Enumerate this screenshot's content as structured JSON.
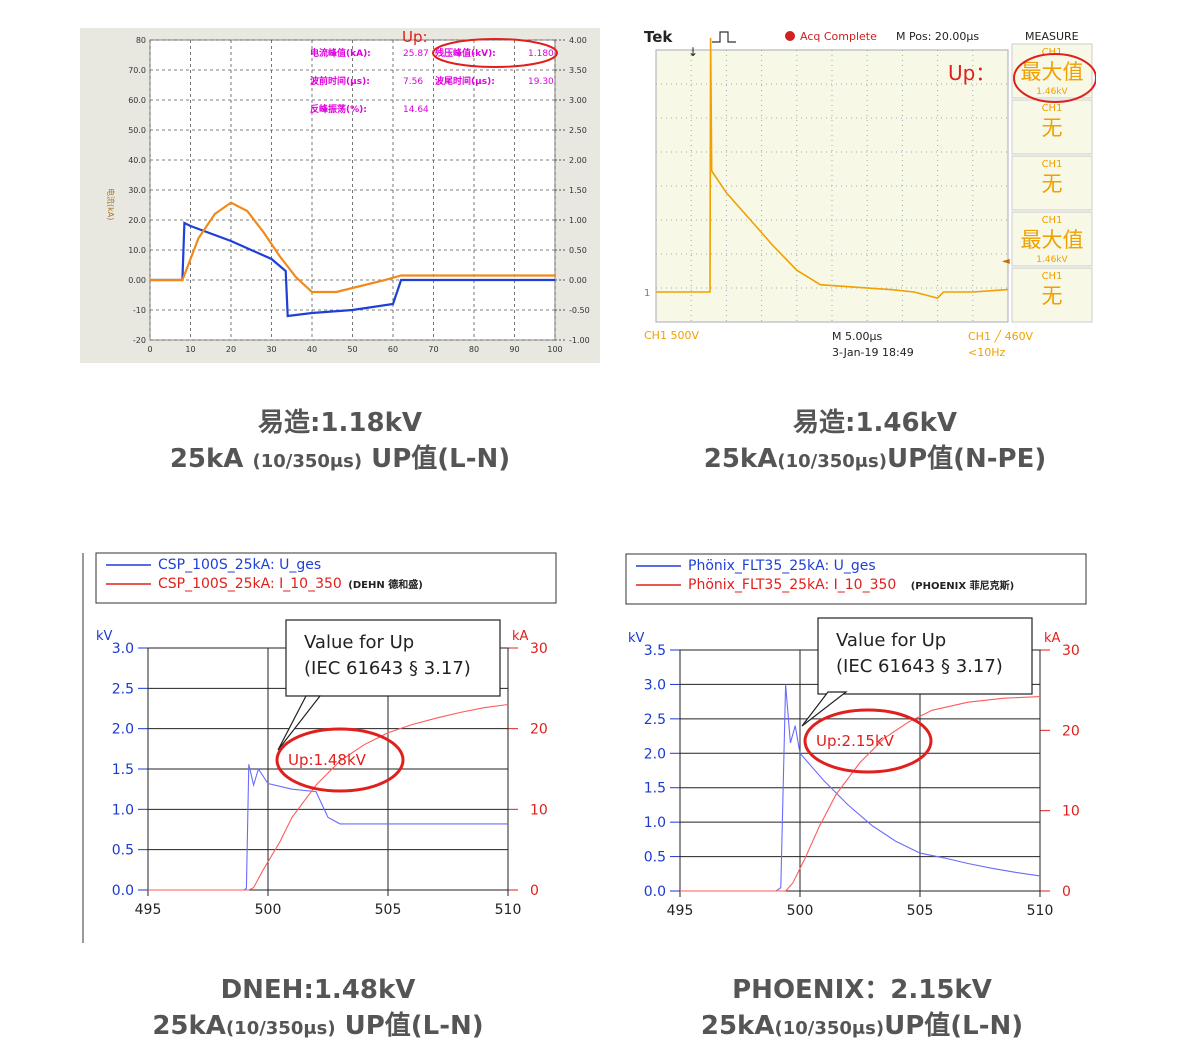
{
  "colors": {
    "blue": "#1f3fd6",
    "orange": "#f08a1c",
    "red": "#e0201c",
    "magenta": "#e000e0",
    "scope_bg": "#f7f9e6",
    "scope_yellow": "#f0a000"
  },
  "captions": [
    {
      "line1": "易造:1.18kV",
      "line2a": "25kA ",
      "line2b": "(10/350μs)",
      "line2c": " UP值(L-N)"
    },
    {
      "line1": "易造:1.46kV",
      "line2a": "25kA",
      "line2b": "(10/350μs)",
      "line2c": "UP值(N-PE)"
    },
    {
      "line1": "DNEH:1.48kV",
      "line2a": "25kA",
      "line2b": "(10/350μs)",
      "line2c": " UP值(L-N)"
    },
    {
      "line1": "PHOENIX：2.15kV",
      "line2a": "25kA",
      "line2b": "(10/350μs)",
      "line2c": "UP值(L-N)"
    }
  ],
  "chart_data": [
    {
      "type": "line",
      "panel": "top-left",
      "up_label": "Up:",
      "ylabel_left": "电流(kA)",
      "x": [
        0,
        10,
        20,
        30,
        40,
        50,
        60,
        70,
        80,
        90,
        100
      ],
      "xlim": [
        0,
        100
      ],
      "ylim_left": [
        -20,
        80
      ],
      "ylim_right": [
        -1.0,
        4.0
      ],
      "left_ticks": [
        "80",
        "70.0",
        "60.0",
        "50.0",
        "40.0",
        "30.0",
        "20.0",
        "10.0",
        "0.00",
        "-10",
        "-20"
      ],
      "right_ticks": [
        "4.00",
        "3.50",
        "3.00",
        "2.50",
        "2.00",
        "1.50",
        "1.00",
        "0.50",
        "0.00",
        "-0.50",
        "-1.00"
      ],
      "readouts": [
        {
          "label": "电流峰值(kA):",
          "value": "25.87"
        },
        {
          "label": "残压峰值(kV):",
          "value": "1.180"
        },
        {
          "label": "波前时间(μs):",
          "value": "7.56"
        },
        {
          "label": "波尾时间(μs):",
          "value": "19.30"
        },
        {
          "label": "反峰振荡(%):",
          "value": "14.64"
        }
      ],
      "series": [
        {
          "color": "blue",
          "points": [
            [
              0,
              0
            ],
            [
              8,
              0
            ],
            [
              8.5,
              19
            ],
            [
              10,
              18
            ],
            [
              20,
              13
            ],
            [
              30,
              7
            ],
            [
              33.5,
              3
            ],
            [
              34,
              -12
            ],
            [
              40,
              -11
            ],
            [
              50,
              -10
            ],
            [
              60,
              -8
            ],
            [
              62,
              0
            ],
            [
              100,
              0
            ]
          ]
        },
        {
          "color": "orange",
          "points": [
            [
              0,
              0
            ],
            [
              8,
              0
            ],
            [
              12,
              14
            ],
            [
              16,
              22
            ],
            [
              20,
              25.8
            ],
            [
              24,
              23
            ],
            [
              28,
              16
            ],
            [
              32,
              8
            ],
            [
              36,
              1
            ],
            [
              40,
              -4
            ],
            [
              46,
              -4
            ],
            [
              52,
              -2
            ],
            [
              58,
              0
            ],
            [
              62,
              1.5
            ],
            [
              100,
              1.5
            ]
          ]
        }
      ],
      "ellipse_value": "1.180"
    },
    {
      "type": "line",
      "panel": "top-right",
      "brand": "Tek",
      "status": "Acq Complete",
      "mpos": "M Pos: 20.00μs",
      "measure_title": "MEASURE",
      "up_label": "Up：",
      "measure": [
        {
          "ch": "CH1",
          "value": "最大值",
          "sub": "1.46kV"
        },
        {
          "ch": "CH1",
          "value": "无",
          "sub": ""
        },
        {
          "ch": "CH1",
          "value": "无",
          "sub": ""
        },
        {
          "ch": "CH1",
          "value": "最大值",
          "sub": "1.46kV"
        },
        {
          "ch": "CH1",
          "value": "无",
          "sub": ""
        }
      ],
      "ch_scale": "CH1  500V",
      "time_scale": "M 5.00μs",
      "date": "3-Jan-19 18:49",
      "trigger": "CH1 ╱ 460V",
      "freq": "<10Hz",
      "marker": "1",
      "series": [
        {
          "color": "scope_yellow",
          "points": [
            [
              0,
              0
            ],
            [
              9.2,
              0
            ],
            [
              9.3,
              2.1
            ],
            [
              9.5,
              1.0
            ],
            [
              12,
              0.82
            ],
            [
              16,
              0.6
            ],
            [
              20,
              0.38
            ],
            [
              24,
              0.18
            ],
            [
              28,
              0.06
            ],
            [
              34,
              0.04
            ],
            [
              40,
              0.02
            ],
            [
              44,
              0.0
            ],
            [
              48,
              -0.05
            ],
            [
              49,
              0.0
            ],
            [
              54,
              0.0
            ],
            [
              60,
              0.02
            ]
          ]
        }
      ]
    },
    {
      "type": "line",
      "panel": "bottom-left",
      "legend": [
        {
          "color": "blue",
          "name": "CSP_100S_25kA: U_ges"
        },
        {
          "color": "red",
          "name": "CSP_100S_25kA: I_10_350",
          "suffix": "(DEHN 德和盛)"
        }
      ],
      "left_unit": "kV",
      "right_unit": "kA",
      "x_ticks": [
        "495",
        "500",
        "505",
        "510"
      ],
      "xlim": [
        495,
        510
      ],
      "ylim_left": [
        0,
        3.0
      ],
      "left_ticks": [
        "3.0",
        "2.5",
        "2.0",
        "1.5",
        "1.0",
        "0.5",
        "0.0"
      ],
      "ylim_right": [
        0,
        30
      ],
      "right_ticks": [
        "30",
        "20",
        "10",
        "0"
      ],
      "callout": [
        "Value for Up",
        "(IEC 61643 § 3.17)"
      ],
      "up_label": "Up:1.48kV",
      "series": [
        {
          "color": "blue",
          "points": [
            [
              495,
              0
            ],
            [
              499,
              0
            ],
            [
              499.1,
              0.02
            ],
            [
              499.2,
              1.56
            ],
            [
              499.4,
              1.3
            ],
            [
              499.6,
              1.5
            ],
            [
              500,
              1.32
            ],
            [
              501,
              1.25
            ],
            [
              502,
              1.22
            ],
            [
              502.5,
              0.9
            ],
            [
              503,
              0.82
            ],
            [
              505,
              0.82
            ],
            [
              510,
              0.82
            ]
          ]
        },
        {
          "color": "red",
          "points": [
            [
              495,
              0
            ],
            [
              499.2,
              0
            ],
            [
              499.4,
              0.3
            ],
            [
              499.8,
              2.5
            ],
            [
              500.5,
              6
            ],
            [
              501,
              9
            ],
            [
              502,
              13
            ],
            [
              503,
              16
            ],
            [
              504,
              18
            ],
            [
              505,
              19.5
            ],
            [
              506,
              20.5
            ],
            [
              507,
              21.3
            ],
            [
              508,
              22
            ],
            [
              509,
              22.6
            ],
            [
              510,
              23
            ]
          ]
        }
      ]
    },
    {
      "type": "line",
      "panel": "bottom-right",
      "legend": [
        {
          "color": "blue",
          "name": "Phönix_FLT35_25kA: U_ges"
        },
        {
          "color": "red",
          "name": "Phönix_FLT35_25kA: I_10_350",
          "suffix": "(PHOENIX 菲尼克斯)"
        }
      ],
      "left_unit": "kV",
      "right_unit": "kA",
      "x_ticks": [
        "495",
        "500",
        "505",
        "510"
      ],
      "xlim": [
        495,
        510
      ],
      "ylim_left": [
        0,
        3.5
      ],
      "left_ticks": [
        "3.5",
        "3.0",
        "2.5",
        "2.0",
        "1.5",
        "1.0",
        "0.5",
        "0.0"
      ],
      "ylim_right": [
        0,
        30
      ],
      "right_ticks": [
        "30",
        "20",
        "10",
        "0"
      ],
      "callout": [
        "Value for Up",
        "(IEC 61643 § 3.17)"
      ],
      "up_label": "Up:2.15kV",
      "series": [
        {
          "color": "blue",
          "points": [
            [
              495,
              0
            ],
            [
              499,
              0
            ],
            [
              499.2,
              0.05
            ],
            [
              499.4,
              3.0
            ],
            [
              499.6,
              2.15
            ],
            [
              499.8,
              2.4
            ],
            [
              500,
              2.0
            ],
            [
              501,
              1.6
            ],
            [
              502,
              1.25
            ],
            [
              503,
              0.95
            ],
            [
              504,
              0.72
            ],
            [
              505,
              0.55
            ],
            [
              506,
              0.48
            ],
            [
              507,
              0.4
            ],
            [
              508,
              0.33
            ],
            [
              509,
              0.27
            ],
            [
              510,
              0.22
            ]
          ]
        },
        {
          "color": "red",
          "points": [
            [
              495,
              0
            ],
            [
              499.4,
              0
            ],
            [
              499.7,
              1
            ],
            [
              500.2,
              4
            ],
            [
              500.8,
              8
            ],
            [
              501.5,
              12
            ],
            [
              502.5,
              16
            ],
            [
              503.5,
              19
            ],
            [
              504.5,
              21
            ],
            [
              505.5,
              22.5
            ],
            [
              507,
              23.5
            ],
            [
              508.5,
              24
            ],
            [
              510,
              24.2
            ]
          ]
        }
      ]
    }
  ]
}
